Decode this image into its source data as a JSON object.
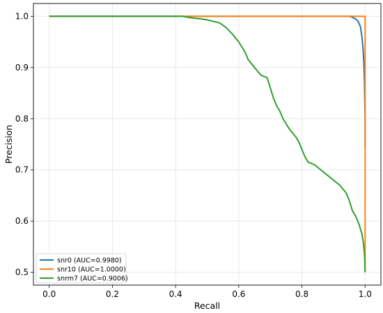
{
  "chart_data": {
    "type": "line",
    "xlabel": "Recall",
    "ylabel": "Precision",
    "xlim": [
      -0.05,
      1.05
    ],
    "ylim": [
      0.475,
      1.025
    ],
    "x_ticks": [
      "0.0",
      "0.2",
      "0.4",
      "0.6",
      "0.8",
      "1.0"
    ],
    "y_ticks": [
      "0.5",
      "0.6",
      "0.7",
      "0.8",
      "0.9",
      "1.0"
    ],
    "grid": true,
    "legend_position": "lower-left",
    "series": [
      {
        "name": "snr0 (AUC=0.9980)",
        "color": "#1f77b4",
        "points": [
          [
            0.0,
            1.0
          ],
          [
            0.95,
            1.0
          ],
          [
            0.96,
            0.998
          ],
          [
            0.97,
            0.995
          ],
          [
            0.978,
            0.99
          ],
          [
            0.985,
            0.98
          ],
          [
            0.99,
            0.96
          ],
          [
            0.993,
            0.94
          ],
          [
            0.996,
            0.91
          ],
          [
            0.998,
            0.87
          ],
          [
            0.999,
            0.83
          ],
          [
            1.0,
            0.8
          ],
          [
            1.0,
            0.745
          ]
        ]
      },
      {
        "name": "snr10 (AUC=1.0000)",
        "color": "#ff7f0e",
        "points": [
          [
            0.0,
            1.0
          ],
          [
            1.0,
            1.0
          ],
          [
            1.0,
            0.5
          ]
        ]
      },
      {
        "name": "snrm7 (AUC=0.9006)",
        "color": "#2ca02c",
        "points": [
          [
            0.0,
            1.0
          ],
          [
            0.42,
            1.0
          ],
          [
            0.45,
            0.997
          ],
          [
            0.48,
            0.995
          ],
          [
            0.5,
            0.993
          ],
          [
            0.52,
            0.99
          ],
          [
            0.54,
            0.987
          ],
          [
            0.56,
            0.978
          ],
          [
            0.58,
            0.965
          ],
          [
            0.6,
            0.95
          ],
          [
            0.62,
            0.93
          ],
          [
            0.63,
            0.915
          ],
          [
            0.65,
            0.9
          ],
          [
            0.67,
            0.885
          ],
          [
            0.69,
            0.88
          ],
          [
            0.7,
            0.86
          ],
          [
            0.71,
            0.84
          ],
          [
            0.72,
            0.825
          ],
          [
            0.73,
            0.815
          ],
          [
            0.74,
            0.8
          ],
          [
            0.75,
            0.79
          ],
          [
            0.76,
            0.78
          ],
          [
            0.78,
            0.765
          ],
          [
            0.79,
            0.755
          ],
          [
            0.8,
            0.74
          ],
          [
            0.81,
            0.725
          ],
          [
            0.82,
            0.715
          ],
          [
            0.84,
            0.71
          ],
          [
            0.86,
            0.7
          ],
          [
            0.88,
            0.69
          ],
          [
            0.9,
            0.68
          ],
          [
            0.92,
            0.67
          ],
          [
            0.94,
            0.655
          ],
          [
            0.95,
            0.64
          ],
          [
            0.96,
            0.62
          ],
          [
            0.97,
            0.61
          ],
          [
            0.98,
            0.595
          ],
          [
            0.99,
            0.575
          ],
          [
            0.995,
            0.555
          ],
          [
            0.998,
            0.535
          ],
          [
            1.0,
            0.5
          ]
        ]
      }
    ]
  }
}
